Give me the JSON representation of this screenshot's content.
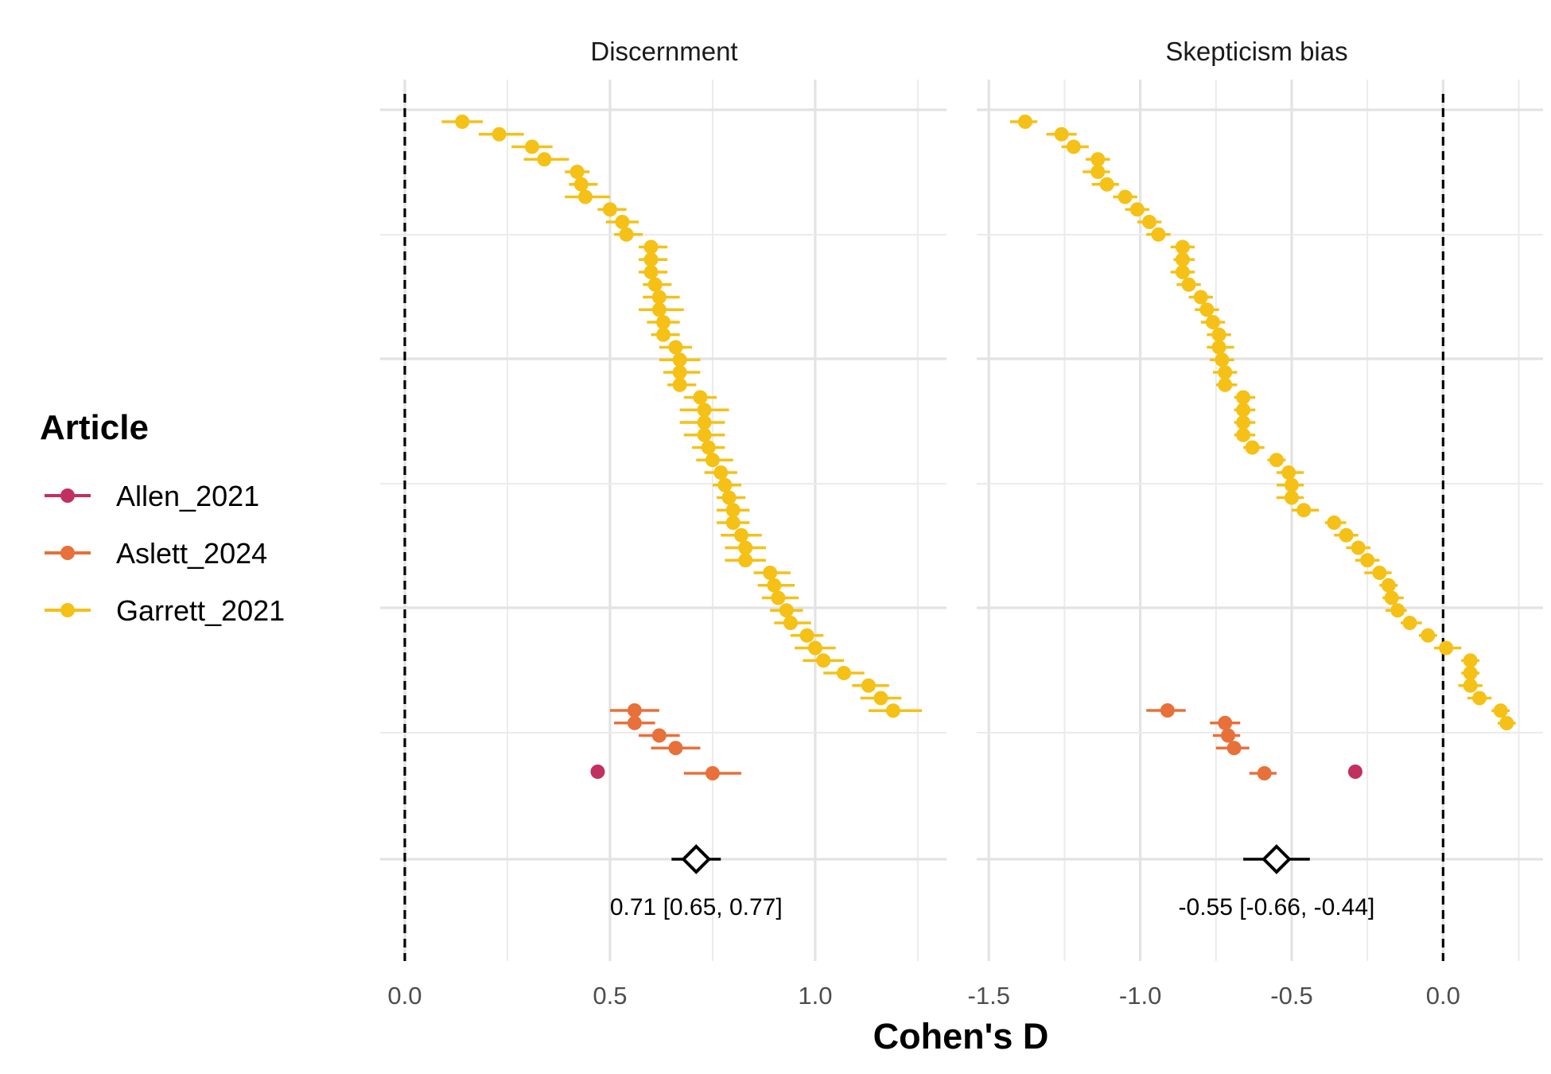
{
  "chart_data": {
    "type": "forest",
    "xlabel": "Cohen's D",
    "legend": {
      "title": "Article",
      "position": "left",
      "entries": [
        {
          "name": "Allen_2021",
          "color": "#C2305F"
        },
        {
          "name": "Aslett_2024",
          "color": "#E8703A"
        },
        {
          "name": "Garrett_2021",
          "color": "#F5C117"
        }
      ]
    },
    "grid": true,
    "panels": [
      {
        "title": "Discernment",
        "xlim": [
          -0.06,
          1.32
        ],
        "xticks": [
          0.0,
          0.5,
          1.0
        ],
        "xtick_labels": [
          "0.0",
          "0.5",
          "1.0"
        ],
        "reference_line": 0,
        "summary": {
          "estimate": 0.71,
          "lower": 0.65,
          "upper": 0.77,
          "label": "0.71 [0.65, 0.77]"
        },
        "series": [
          {
            "name": "Garrett_2021",
            "points": [
              [
                0.14,
                0.09,
                0.19
              ],
              [
                0.23,
                0.18,
                0.29
              ],
              [
                0.31,
                0.26,
                0.36
              ],
              [
                0.34,
                0.29,
                0.4
              ],
              [
                0.42,
                0.39,
                0.45
              ],
              [
                0.43,
                0.4,
                0.47
              ],
              [
                0.44,
                0.39,
                0.5
              ],
              [
                0.5,
                0.47,
                0.54
              ],
              [
                0.53,
                0.49,
                0.57
              ],
              [
                0.54,
                0.51,
                0.58
              ],
              [
                0.6,
                0.57,
                0.64
              ],
              [
                0.6,
                0.57,
                0.64
              ],
              [
                0.6,
                0.57,
                0.64
              ],
              [
                0.61,
                0.58,
                0.65
              ],
              [
                0.62,
                0.58,
                0.67
              ],
              [
                0.62,
                0.57,
                0.68
              ],
              [
                0.63,
                0.59,
                0.67
              ],
              [
                0.63,
                0.6,
                0.67
              ],
              [
                0.66,
                0.62,
                0.7
              ],
              [
                0.67,
                0.62,
                0.72
              ],
              [
                0.67,
                0.63,
                0.72
              ],
              [
                0.67,
                0.64,
                0.71
              ],
              [
                0.72,
                0.68,
                0.76
              ],
              [
                0.73,
                0.67,
                0.79
              ],
              [
                0.73,
                0.67,
                0.78
              ],
              [
                0.73,
                0.68,
                0.78
              ],
              [
                0.74,
                0.7,
                0.78
              ],
              [
                0.75,
                0.71,
                0.8
              ],
              [
                0.77,
                0.73,
                0.81
              ],
              [
                0.78,
                0.75,
                0.82
              ],
              [
                0.79,
                0.76,
                0.83
              ],
              [
                0.8,
                0.76,
                0.84
              ],
              [
                0.8,
                0.76,
                0.84
              ],
              [
                0.82,
                0.77,
                0.87
              ],
              [
                0.83,
                0.78,
                0.88
              ],
              [
                0.83,
                0.78,
                0.88
              ],
              [
                0.89,
                0.85,
                0.94
              ],
              [
                0.9,
                0.86,
                0.95
              ],
              [
                0.91,
                0.87,
                0.96
              ],
              [
                0.93,
                0.89,
                0.97
              ],
              [
                0.94,
                0.9,
                0.99
              ],
              [
                0.98,
                0.94,
                1.02
              ],
              [
                1.0,
                0.95,
                1.05
              ],
              [
                1.02,
                0.97,
                1.07
              ],
              [
                1.07,
                1.02,
                1.12
              ],
              [
                1.13,
                1.09,
                1.18
              ],
              [
                1.16,
                1.11,
                1.21
              ],
              [
                1.19,
                1.13,
                1.26
              ]
            ]
          },
          {
            "name": "Aslett_2024",
            "points": [
              [
                0.56,
                0.5,
                0.62
              ],
              [
                0.56,
                0.51,
                0.61
              ],
              [
                0.62,
                0.57,
                0.67
              ],
              [
                0.66,
                0.6,
                0.72
              ],
              [
                0.75,
                0.68,
                0.82
              ]
            ]
          },
          {
            "name": "Allen_2021",
            "points": [
              [
                0.47,
                0.47,
                0.47
              ]
            ]
          }
        ]
      },
      {
        "title": "Skepticism bias",
        "xlim": [
          -1.54,
          0.33
        ],
        "xticks": [
          -1.5,
          -1.0,
          -0.5,
          0.0
        ],
        "xtick_labels": [
          "-1.5",
          "-1.0",
          "-0.5",
          "0.0"
        ],
        "reference_line": 0,
        "summary": {
          "estimate": -0.55,
          "lower": -0.66,
          "upper": -0.44,
          "label": "-0.55 [-0.66, -0.44]"
        },
        "series": [
          {
            "name": "Garrett_2021",
            "points": [
              [
                -1.38,
                -1.43,
                -1.34
              ],
              [
                -1.26,
                -1.31,
                -1.21
              ],
              [
                -1.22,
                -1.26,
                -1.17
              ],
              [
                -1.14,
                -1.18,
                -1.1
              ],
              [
                -1.14,
                -1.19,
                -1.1
              ],
              [
                -1.11,
                -1.16,
                -1.07
              ],
              [
                -1.05,
                -1.09,
                -1.01
              ],
              [
                -1.01,
                -1.05,
                -0.97
              ],
              [
                -0.97,
                -1.01,
                -0.93
              ],
              [
                -0.94,
                -0.98,
                -0.9
              ],
              [
                -0.86,
                -0.9,
                -0.82
              ],
              [
                -0.86,
                -0.89,
                -0.82
              ],
              [
                -0.86,
                -0.9,
                -0.82
              ],
              [
                -0.84,
                -0.88,
                -0.8
              ],
              [
                -0.8,
                -0.84,
                -0.76
              ],
              [
                -0.78,
                -0.82,
                -0.74
              ],
              [
                -0.76,
                -0.8,
                -0.72
              ],
              [
                -0.74,
                -0.78,
                -0.7
              ],
              [
                -0.74,
                -0.78,
                -0.69
              ],
              [
                -0.73,
                -0.77,
                -0.69
              ],
              [
                -0.72,
                -0.76,
                -0.68
              ],
              [
                -0.72,
                -0.75,
                -0.68
              ],
              [
                -0.66,
                -0.69,
                -0.62
              ],
              [
                -0.66,
                -0.69,
                -0.62
              ],
              [
                -0.66,
                -0.69,
                -0.62
              ],
              [
                -0.66,
                -0.69,
                -0.62
              ],
              [
                -0.63,
                -0.66,
                -0.59
              ],
              [
                -0.55,
                -0.58,
                -0.52
              ],
              [
                -0.51,
                -0.55,
                -0.46
              ],
              [
                -0.5,
                -0.55,
                -0.46
              ],
              [
                -0.5,
                -0.55,
                -0.46
              ],
              [
                -0.46,
                -0.5,
                -0.41
              ],
              [
                -0.36,
                -0.39,
                -0.32
              ],
              [
                -0.32,
                -0.36,
                -0.28
              ],
              [
                -0.28,
                -0.32,
                -0.24
              ],
              [
                -0.25,
                -0.29,
                -0.21
              ],
              [
                -0.21,
                -0.26,
                -0.17
              ],
              [
                -0.18,
                -0.21,
                -0.15
              ],
              [
                -0.17,
                -0.2,
                -0.13
              ],
              [
                -0.15,
                -0.19,
                -0.12
              ],
              [
                -0.11,
                -0.14,
                -0.07
              ],
              [
                -0.05,
                -0.08,
                -0.02
              ],
              [
                0.01,
                -0.03,
                0.06
              ],
              [
                0.09,
                0.06,
                0.12
              ],
              [
                0.09,
                0.06,
                0.12
              ],
              [
                0.09,
                0.05,
                0.13
              ],
              [
                0.12,
                0.08,
                0.16
              ],
              [
                0.19,
                0.16,
                0.22
              ],
              [
                0.21,
                0.18,
                0.24
              ]
            ]
          },
          {
            "name": "Aslett_2024",
            "points": [
              [
                -0.91,
                -0.98,
                -0.85
              ],
              [
                -0.72,
                -0.77,
                -0.67
              ],
              [
                -0.71,
                -0.76,
                -0.67
              ],
              [
                -0.69,
                -0.75,
                -0.64
              ],
              [
                -0.59,
                -0.64,
                -0.55
              ]
            ]
          },
          {
            "name": "Allen_2021",
            "points": [
              [
                -0.29,
                -0.29,
                -0.29
              ]
            ]
          }
        ]
      }
    ]
  }
}
